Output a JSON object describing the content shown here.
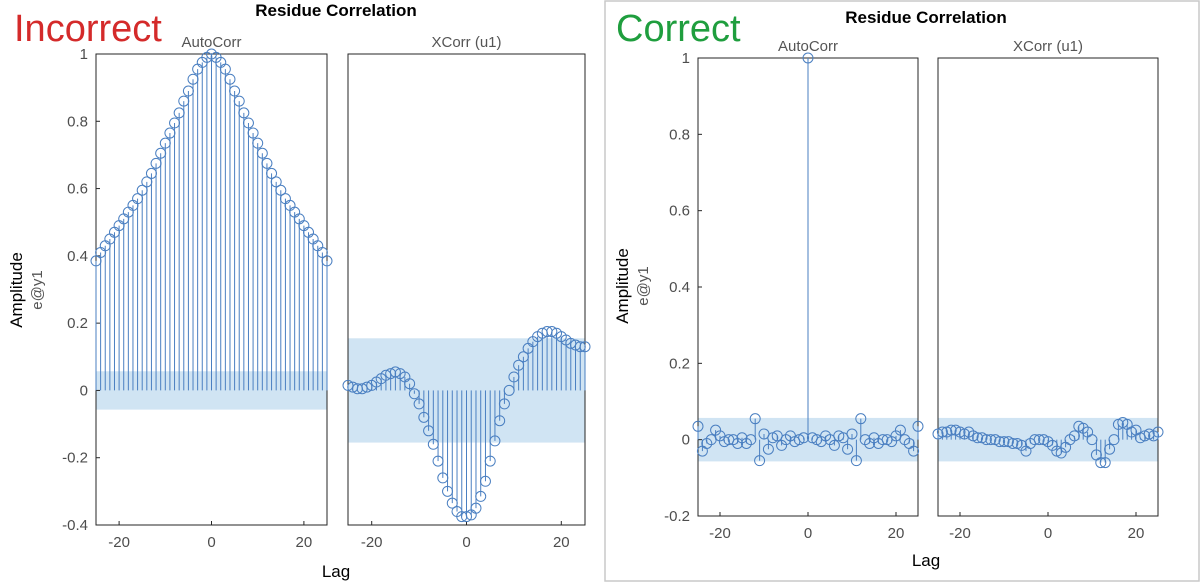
{
  "figures": [
    {
      "status_label": "Incorrect",
      "status_color": "#d42a2a",
      "title": "Residue Correlation",
      "ylabel": "Amplitude",
      "ysublabel": "e@y1",
      "xlabel": "Lag"
    },
    {
      "status_label": "Correct",
      "status_color": "#1f9e3e",
      "title": "Residue Correlation",
      "ylabel": "Amplitude",
      "ysublabel": "e@y1",
      "xlabel": "Lag"
    }
  ],
  "colors": {
    "stem": "#4a7fc1",
    "confidence_band": "#c8dff1",
    "axis": "#262626",
    "tick_text": "#4d4d4d",
    "panel_border": "#c9c9c9"
  },
  "chart_data": [
    {
      "type": "stem",
      "title": "AutoCorr",
      "figure": 0,
      "xlim": [
        -25,
        25
      ],
      "ylim": [
        -0.4,
        1
      ],
      "xticks": [
        -20,
        0,
        20
      ],
      "yticks": [
        -0.4,
        -0.2,
        0,
        0.2,
        0.4,
        0.6,
        0.8,
        1
      ],
      "confidence": [
        -0.057,
        0.057
      ],
      "x": [
        -25,
        -24,
        -23,
        -22,
        -21,
        -20,
        -19,
        -18,
        -17,
        -16,
        -15,
        -14,
        -13,
        -12,
        -11,
        -10,
        -9,
        -8,
        -7,
        -6,
        -5,
        -4,
        -3,
        -2,
        -1,
        0,
        1,
        2,
        3,
        4,
        5,
        6,
        7,
        8,
        9,
        10,
        11,
        12,
        13,
        14,
        15,
        16,
        17,
        18,
        19,
        20,
        21,
        22,
        23,
        24,
        25
      ],
      "values": [
        0.385,
        0.41,
        0.43,
        0.45,
        0.47,
        0.49,
        0.51,
        0.53,
        0.55,
        0.57,
        0.595,
        0.62,
        0.645,
        0.675,
        0.705,
        0.735,
        0.765,
        0.795,
        0.825,
        0.86,
        0.89,
        0.925,
        0.955,
        0.975,
        0.99,
        1.0,
        0.99,
        0.975,
        0.955,
        0.925,
        0.89,
        0.86,
        0.825,
        0.795,
        0.765,
        0.735,
        0.705,
        0.675,
        0.645,
        0.62,
        0.595,
        0.57,
        0.55,
        0.53,
        0.51,
        0.49,
        0.47,
        0.45,
        0.43,
        0.41,
        0.385
      ]
    },
    {
      "type": "stem",
      "title": "XCorr (u1)",
      "figure": 0,
      "xlim": [
        -25,
        25
      ],
      "ylim": [
        -0.4,
        1
      ],
      "xticks": [
        -20,
        0,
        20
      ],
      "yticks": [],
      "confidence": [
        -0.155,
        0.155
      ],
      "x": [
        -25,
        -24,
        -23,
        -22,
        -21,
        -20,
        -19,
        -18,
        -17,
        -16,
        -15,
        -14,
        -13,
        -12,
        -11,
        -10,
        -9,
        -8,
        -7,
        -6,
        -5,
        -4,
        -3,
        -2,
        -1,
        0,
        1,
        2,
        3,
        4,
        5,
        6,
        7,
        8,
        9,
        10,
        11,
        12,
        13,
        14,
        15,
        16,
        17,
        18,
        19,
        20,
        21,
        22,
        23,
        24,
        25
      ],
      "values": [
        0.015,
        0.01,
        0.005,
        0.005,
        0.01,
        0.015,
        0.025,
        0.035,
        0.045,
        0.05,
        0.055,
        0.05,
        0.04,
        0.02,
        -0.01,
        -0.04,
        -0.08,
        -0.12,
        -0.16,
        -0.21,
        -0.26,
        -0.3,
        -0.335,
        -0.36,
        -0.375,
        -0.375,
        -0.37,
        -0.35,
        -0.315,
        -0.27,
        -0.21,
        -0.15,
        -0.09,
        -0.04,
        0.0,
        0.04,
        0.075,
        0.1,
        0.125,
        0.145,
        0.16,
        0.17,
        0.175,
        0.175,
        0.17,
        0.16,
        0.15,
        0.14,
        0.135,
        0.13,
        0.13
      ]
    },
    {
      "type": "stem",
      "title": "AutoCorr",
      "figure": 1,
      "xlim": [
        -25,
        25
      ],
      "ylim": [
        -0.2,
        1
      ],
      "xticks": [
        -20,
        0,
        20
      ],
      "yticks": [
        -0.2,
        0,
        0.2,
        0.4,
        0.6,
        0.8,
        1
      ],
      "confidence": [
        -0.057,
        0.057
      ],
      "x": [
        -25,
        -24,
        -23,
        -22,
        -21,
        -20,
        -19,
        -18,
        -17,
        -16,
        -15,
        -14,
        -13,
        -12,
        -11,
        -10,
        -9,
        -8,
        -7,
        -6,
        -5,
        -4,
        -3,
        -2,
        -1,
        0,
        1,
        2,
        3,
        4,
        5,
        6,
        7,
        8,
        9,
        10,
        11,
        12,
        13,
        14,
        15,
        16,
        17,
        18,
        19,
        20,
        21,
        22,
        23,
        24,
        25
      ],
      "values": [
        0.035,
        -0.03,
        -0.01,
        0.0,
        0.025,
        0.01,
        -0.005,
        0.0,
        0.0,
        -0.01,
        0.005,
        -0.01,
        0.0,
        0.055,
        -0.055,
        0.015,
        -0.025,
        0.005,
        0.01,
        -0.015,
        0.0,
        0.01,
        -0.005,
        0.0,
        0.005,
        1.0,
        0.005,
        0.0,
        -0.005,
        0.01,
        0.0,
        -0.015,
        0.01,
        0.005,
        -0.025,
        0.015,
        -0.055,
        0.055,
        0.0,
        -0.01,
        0.005,
        -0.01,
        0.0,
        0.0,
        -0.005,
        0.01,
        0.025,
        0.0,
        -0.01,
        -0.03,
        0.035
      ]
    },
    {
      "type": "stem",
      "title": "XCorr (u1)",
      "figure": 1,
      "xlim": [
        -25,
        25
      ],
      "ylim": [
        -0.2,
        1
      ],
      "xticks": [
        -20,
        0,
        20
      ],
      "yticks": [],
      "confidence": [
        -0.057,
        0.057
      ],
      "x": [
        -25,
        -24,
        -23,
        -22,
        -21,
        -20,
        -19,
        -18,
        -17,
        -16,
        -15,
        -14,
        -13,
        -12,
        -11,
        -10,
        -9,
        -8,
        -7,
        -6,
        -5,
        -4,
        -3,
        -2,
        -1,
        0,
        1,
        2,
        3,
        4,
        5,
        6,
        7,
        8,
        9,
        10,
        11,
        12,
        13,
        14,
        15,
        16,
        17,
        18,
        19,
        20,
        21,
        22,
        23,
        24,
        25
      ],
      "values": [
        0.015,
        0.02,
        0.02,
        0.025,
        0.025,
        0.02,
        0.015,
        0.02,
        0.01,
        0.005,
        0.005,
        0.0,
        0.0,
        0.0,
        -0.005,
        -0.005,
        -0.005,
        -0.01,
        -0.01,
        -0.015,
        -0.03,
        -0.01,
        0.0,
        0.0,
        0.0,
        -0.005,
        -0.015,
        -0.03,
        -0.035,
        -0.02,
        0.0,
        0.01,
        0.035,
        0.03,
        0.02,
        0.0,
        -0.04,
        -0.06,
        -0.06,
        -0.025,
        0.0,
        0.04,
        0.045,
        0.04,
        0.02,
        0.025,
        0.005,
        0.01,
        0.015,
        0.01,
        0.02
      ]
    }
  ]
}
